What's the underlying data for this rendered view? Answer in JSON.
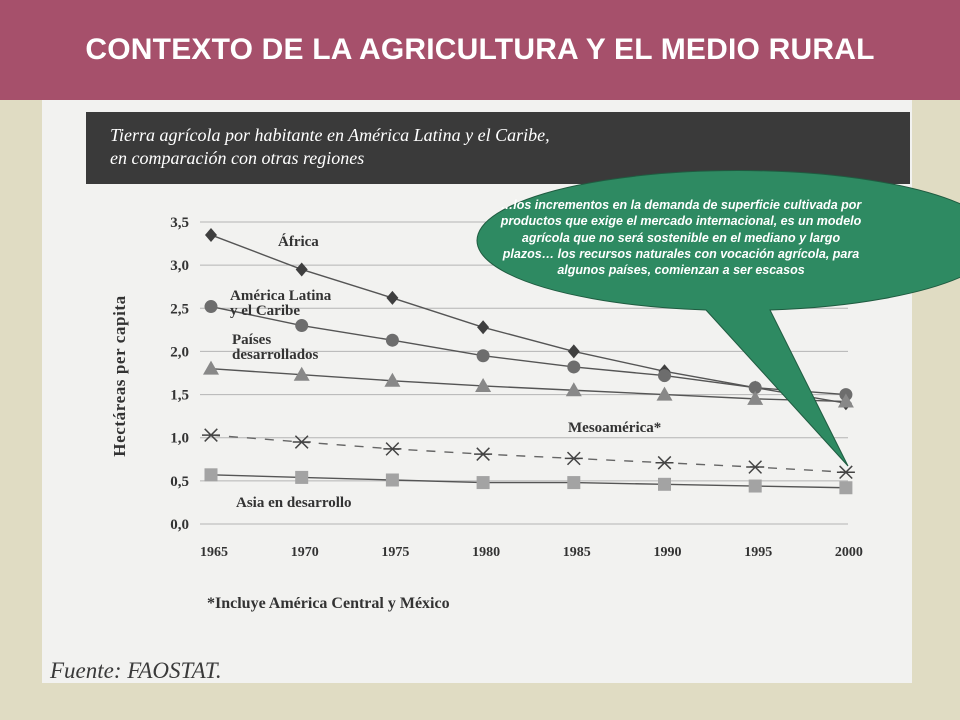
{
  "header": {
    "title": "CONTEXTO DE LA AGRICULTURA Y EL MEDIO RURAL"
  },
  "figure": {
    "title_line1": "Tierra agrícola por habitante en América Latina y el Caribe,",
    "title_line2": "en comparación con otras regiones",
    "footnote": "*Incluye América Central y México",
    "source": "Fuente: FAOSTAT."
  },
  "callout": {
    "text": "…los incrementos en la demanda de superficie cultivada por productos que exige el mercado internacional, es un modelo agrícola que no será sostenible en el mediano y largo plazos… los recursos naturales con vocación agrícola,  para algunos países, comienzan a ser escasos",
    "fill": "#2e8a62"
  },
  "chart_data": {
    "type": "line",
    "ylabel": "Hectáreas per capita",
    "xlabel": "",
    "ylim": [
      0,
      3.5
    ],
    "yticks": [
      "0,0",
      "0,5",
      "1,0",
      "1,5",
      "2,0",
      "2,5",
      "3,0",
      "3,5"
    ],
    "grid": true,
    "categories": [
      "1965",
      "1970",
      "1975",
      "1980",
      "1985",
      "1990",
      "1995",
      "2000"
    ],
    "series": [
      {
        "name": "África",
        "marker": "diamond",
        "label_lines": [
          "África"
        ],
        "values": [
          3.35,
          2.95,
          2.62,
          2.28,
          2.0,
          1.77,
          1.58,
          1.4
        ]
      },
      {
        "name": "América Latina y el Caribe",
        "marker": "circle",
        "label_lines": [
          "América Latina",
          "y el Caribe"
        ],
        "values": [
          2.52,
          2.3,
          2.13,
          1.95,
          1.82,
          1.72,
          1.58,
          1.5
        ]
      },
      {
        "name": "Países desarrollados",
        "marker": "triangle",
        "label_lines": [
          "Países",
          "desarrollados"
        ],
        "values": [
          1.8,
          1.73,
          1.66,
          1.6,
          1.55,
          1.5,
          1.45,
          1.42
        ]
      },
      {
        "name": "Mesoamérica*",
        "marker": "asterisk",
        "dashed": true,
        "label_lines": [
          "Mesoamérica*"
        ],
        "values": [
          1.03,
          0.95,
          0.87,
          0.81,
          0.76,
          0.71,
          0.66,
          0.6
        ]
      },
      {
        "name": "Asia en desarrollo",
        "marker": "square",
        "label_lines": [
          "Asia en desarrollo"
        ],
        "values": [
          0.57,
          0.54,
          0.51,
          0.48,
          0.48,
          0.46,
          0.44,
          0.42
        ]
      }
    ]
  }
}
